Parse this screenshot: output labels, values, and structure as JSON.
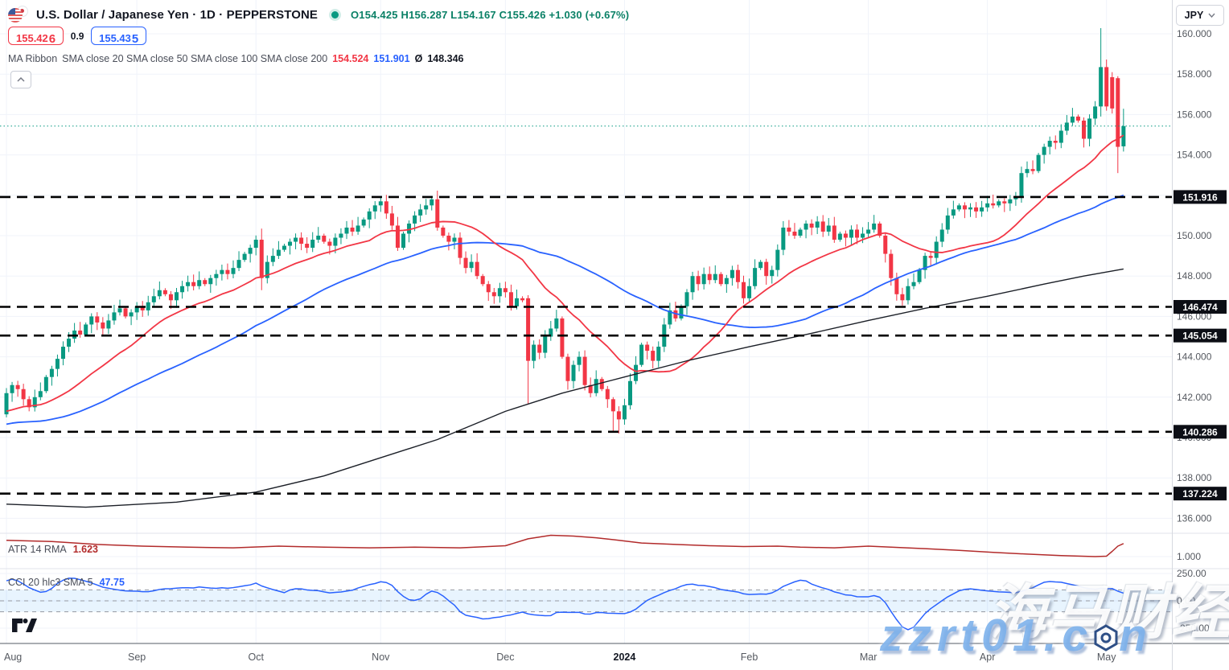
{
  "header": {
    "symbol_title": "U.S. Dollar / Japanese Yen",
    "separator": "·",
    "interval": "1D",
    "exchange": "PEPPERSTONE",
    "market_status_icon": "market-open-dot",
    "ohlc_text": "O154.425  H156.287  L154.167  C155.426  +1.030 (+0.67%)",
    "sell": {
      "main": "155.42",
      "last": "6"
    },
    "spread": "0.9",
    "buy": {
      "main": "155.43",
      "last": "5"
    },
    "indicator_title": "MA Ribbon",
    "indicator_params": "SMA close 20 SMA close 50 SMA close 100 SMA close 200",
    "ma_values": {
      "sma20": "154.524",
      "sma50": "151.901",
      "avg_symbol": "Ø",
      "sma200": "148.346"
    }
  },
  "price_scale": {
    "currency": "JPY",
    "labels": [
      {
        "v": 160,
        "t": "160.000"
      },
      {
        "v": 158,
        "t": "158.000"
      },
      {
        "v": 156,
        "t": "156.000"
      },
      {
        "v": 154,
        "t": "154.000"
      },
      {
        "v": 150,
        "t": "150.000"
      },
      {
        "v": 148,
        "t": "148.000"
      },
      {
        "v": 146,
        "t": "146.000"
      },
      {
        "v": 144,
        "t": "144.000"
      },
      {
        "v": 142,
        "t": "142.000"
      },
      {
        "v": 140,
        "t": "140.000"
      },
      {
        "v": 138,
        "t": "138.000"
      },
      {
        "v": 136,
        "t": "136.000"
      }
    ]
  },
  "atr_pane": {
    "title": "ATR 14 RMA",
    "value": "1.623",
    "axis_label": "1.000"
  },
  "cci_pane": {
    "title": "CCI 20 hlc3 SMA 5",
    "value": "47.75",
    "axis_labels": [
      {
        "v": 250,
        "t": "250.00"
      },
      {
        "v": 0,
        "t": "0.00"
      },
      {
        "v": -250,
        "t": "-250.00"
      }
    ]
  },
  "watermark": {
    "line1": "海马财经",
    "line2_prefix": "zzrt01.c",
    "line2_suffix": "n"
  },
  "colors": {
    "up": "#089981",
    "down": "#f23645",
    "sma20": "#f23645",
    "sma50": "#2962ff",
    "sma200": "#1b1f27",
    "atr_line": "#b22b2b",
    "cci_line": "#2962ff",
    "level_line": "#000000",
    "grid": "#f0f3fa",
    "axis_text": "#555960",
    "badge_bg": "#0c0e15",
    "badge_text": "#ffffff",
    "ohlc_text": "#0a8066",
    "band_fill": "rgba(33,150,243,0.10)",
    "dash_gray": "#9598a1",
    "separator": "#e0e3eb",
    "axis_border": "#d6d9e0",
    "time_border": "#555b66"
  },
  "chart_data": {
    "type": "candlestick",
    "symbol": "USD/JPY",
    "interval": "1D",
    "exchange": "PEPPERSTONE",
    "last_candle": {
      "open": 154.425,
      "high": 156.287,
      "low": 154.167,
      "close": 155.426,
      "change": 1.03,
      "change_pct": 0.67
    },
    "y_axis": {
      "min": 135.4,
      "max": 161.7,
      "tick_step": 2
    },
    "months": [
      {
        "label": "Aug",
        "day": 0
      },
      {
        "label": "Sep",
        "day": 23
      },
      {
        "label": "Oct",
        "day": 44
      },
      {
        "label": "Nov",
        "day": 66
      },
      {
        "label": "Dec",
        "day": 88
      },
      {
        "label": "2024",
        "day": 109,
        "bold": true
      },
      {
        "label": "Feb",
        "day": 131
      },
      {
        "label": "Mar",
        "day": 152
      },
      {
        "label": "Apr",
        "day": 173
      },
      {
        "label": "May",
        "day": 194
      }
    ],
    "pre_closes": [
      139.5,
      139.8,
      139.4,
      139.0,
      138.8,
      139.2,
      139.6,
      140.0,
      139.7,
      140.2,
      140.5,
      140.1,
      140.6,
      141.0,
      140.8,
      141.2,
      141.5,
      141.1,
      140.7,
      141.0,
      141.3,
      141.0,
      140.6,
      140.2,
      139.8,
      140.1,
      139.6,
      139.1,
      138.8,
      138.5,
      138.9,
      139.3,
      139.0,
      139.5,
      139.9,
      140.3,
      140.0,
      140.4,
      140.8,
      141.1,
      140.9,
      141.2,
      140.8,
      140.4,
      140.9,
      141.3,
      141.6,
      141.2,
      140.8,
      141.1,
      141.4,
      141.7,
      141.3,
      140.9,
      141.2,
      141.5,
      141.8,
      141.4,
      141.6,
      141.8
    ],
    "closes": [
      142.2,
      142.6,
      142.4,
      141.9,
      141.5,
      142.0,
      142.3,
      143.0,
      143.4,
      143.9,
      144.5,
      144.9,
      145.3,
      145.1,
      145.6,
      146.0,
      145.7,
      145.4,
      145.8,
      146.2,
      146.4,
      146.0,
      146.2,
      146.5,
      146.3,
      146.7,
      147.0,
      147.3,
      147.1,
      146.8,
      147.2,
      147.5,
      147.7,
      147.5,
      147.8,
      147.6,
      147.9,
      148.1,
      148.3,
      148.1,
      148.4,
      148.8,
      149.1,
      149.4,
      149.8,
      147.9,
      148.7,
      149.0,
      149.3,
      149.5,
      149.7,
      149.9,
      149.6,
      149.4,
      149.8,
      150.0,
      149.7,
      149.5,
      149.9,
      150.1,
      150.4,
      150.2,
      150.5,
      150.8,
      151.2,
      151.5,
      151.7,
      151.1,
      150.5,
      149.4,
      150.1,
      150.6,
      151.0,
      151.3,
      151.5,
      151.8,
      150.4,
      150.0,
      149.7,
      149.9,
      148.9,
      148.4,
      148.7,
      148.0,
      147.6,
      147.2,
      147.0,
      147.4,
      147.2,
      146.5,
      146.9,
      146.8,
      143.8,
      144.6,
      144.2,
      145.0,
      145.4,
      145.9,
      144.0,
      142.8,
      143.6,
      144.0,
      142.6,
      142.2,
      142.9,
      142.4,
      141.9,
      141.3,
      140.9,
      141.6,
      142.8,
      143.6,
      144.6,
      144.3,
      143.8,
      144.5,
      145.6,
      146.3,
      145.9,
      146.5,
      147.2,
      148.0,
      147.6,
      148.1,
      147.8,
      148.1,
      147.6,
      147.9,
      148.3,
      147.7,
      146.9,
      147.5,
      148.4,
      148.7,
      148.0,
      148.3,
      149.3,
      150.4,
      150.2,
      150.0,
      150.3,
      150.6,
      150.4,
      150.7,
      150.2,
      150.5,
      149.8,
      150.1,
      149.9,
      150.3,
      149.9,
      150.1,
      150.3,
      150.6,
      150.0,
      149.1,
      147.9,
      147.1,
      146.8,
      147.5,
      147.7,
      148.3,
      149.0,
      148.9,
      149.7,
      150.3,
      151.0,
      151.3,
      151.5,
      151.3,
      151.4,
      151.2,
      151.4,
      151.6,
      151.5,
      151.7,
      151.6,
      151.8,
      151.9,
      153.1,
      153.3,
      153.2,
      154.0,
      154.4,
      154.7,
      154.6,
      155.2,
      155.6,
      155.9,
      155.7,
      154.8,
      155.8,
      156.4,
      158.35,
      156.4,
      156.3,
      154.4,
      155.426
    ],
    "candle_overrides": {
      "0": [
        141.15,
        142.45,
        141.0,
        142.2
      ],
      "4": [
        141.9,
        142.05,
        141.3,
        141.5
      ],
      "45": [
        149.8,
        150.35,
        147.3,
        147.9
      ],
      "75": [
        151.5,
        151.92,
        151.25,
        151.8
      ],
      "92": [
        146.9,
        147.05,
        141.65,
        143.8
      ],
      "107": [
        141.9,
        142.0,
        140.3,
        141.3
      ],
      "108": [
        141.3,
        141.55,
        140.2,
        140.9
      ],
      "193": [
        156.4,
        160.28,
        155.9,
        158.35
      ],
      "195": [
        157.85,
        158.1,
        156.05,
        156.3
      ],
      "196": [
        157.8,
        157.9,
        153.1,
        154.4
      ],
      "197": [
        154.425,
        156.287,
        154.167,
        155.426
      ]
    },
    "horizontal_levels": [
      151.916,
      146.474,
      145.054,
      140.286,
      137.224
    ],
    "current_price_line": 155.426,
    "sma20_last": 154.524,
    "sma50_last": 151.901,
    "sma200_last": 148.346,
    "sma200_waypoints": [
      [
        0,
        136.7
      ],
      [
        14,
        136.55
      ],
      [
        30,
        136.8
      ],
      [
        44,
        137.3
      ],
      [
        56,
        138.1
      ],
      [
        66,
        139.0
      ],
      [
        76,
        139.9
      ],
      [
        88,
        141.3
      ],
      [
        98,
        142.2
      ],
      [
        109,
        143.0
      ],
      [
        120,
        143.8
      ],
      [
        131,
        144.5
      ],
      [
        141,
        145.1
      ],
      [
        152,
        145.8
      ],
      [
        162,
        146.4
      ],
      [
        173,
        147.0
      ],
      [
        183,
        147.6
      ],
      [
        190,
        148.0
      ],
      [
        197,
        148.35
      ]
    ],
    "atr": {
      "period": 14,
      "method": "RMA",
      "last": 1.623,
      "axis_tick": 1.0,
      "waypoints": [
        [
          0,
          1.78
        ],
        [
          8,
          1.72
        ],
        [
          16,
          1.58
        ],
        [
          24,
          1.5
        ],
        [
          32,
          1.45
        ],
        [
          40,
          1.42
        ],
        [
          48,
          1.5
        ],
        [
          56,
          1.45
        ],
        [
          64,
          1.42
        ],
        [
          72,
          1.45
        ],
        [
          80,
          1.42
        ],
        [
          88,
          1.52
        ],
        [
          92,
          1.85
        ],
        [
          96,
          2.02
        ],
        [
          100,
          1.98
        ],
        [
          104,
          1.9
        ],
        [
          108,
          1.78
        ],
        [
          112,
          1.65
        ],
        [
          118,
          1.58
        ],
        [
          124,
          1.52
        ],
        [
          130,
          1.48
        ],
        [
          136,
          1.5
        ],
        [
          140,
          1.45
        ],
        [
          146,
          1.42
        ],
        [
          152,
          1.5
        ],
        [
          156,
          1.45
        ],
        [
          162,
          1.38
        ],
        [
          168,
          1.3
        ],
        [
          174,
          1.2
        ],
        [
          180,
          1.12
        ],
        [
          186,
          1.05
        ],
        [
          192,
          1.0
        ],
        [
          194,
          1.02
        ],
        [
          195,
          1.25
        ],
        [
          196,
          1.5
        ],
        [
          197,
          1.623
        ]
      ]
    },
    "cci": {
      "period": 20,
      "source": "hlc3",
      "smoothing": "SMA 5",
      "last": 47.75,
      "band": [
        -100,
        100
      ],
      "axis_ticks": [
        250,
        0,
        -250
      ]
    }
  }
}
